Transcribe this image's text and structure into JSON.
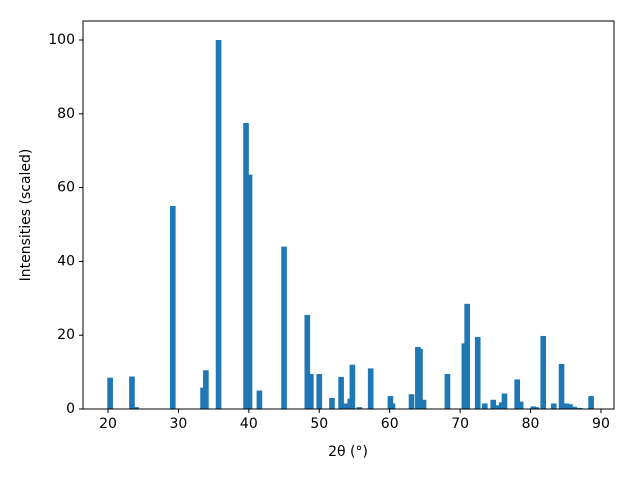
{
  "chart_data": {
    "type": "bar",
    "xlabel": "2θ (°)",
    "ylabel": "Intensities (scaled)",
    "color": "#1f77b4",
    "x": [
      20.3,
      23.4,
      24.0,
      29.2,
      33.5,
      33.9,
      35.7,
      39.6,
      40.1,
      41.5,
      45.0,
      48.3,
      48.8,
      50.0,
      51.8,
      53.1,
      53.8,
      54.4,
      54.7,
      55.7,
      57.3,
      60.1,
      60.4,
      63.1,
      64.0,
      64.3,
      64.8,
      68.2,
      70.6,
      71.0,
      72.5,
      73.5,
      74.7,
      75.3,
      75.9,
      76.3,
      78.1,
      78.6,
      80.4,
      80.8,
      81.8,
      83.3,
      84.4,
      85.1,
      85.6,
      86.2,
      87.0,
      88.6
    ],
    "values": [
      8.5,
      8.8,
      0.5,
      55,
      5.8,
      10.5,
      100,
      77.5,
      63.5,
      5,
      44,
      25.5,
      9.5,
      9.5,
      3,
      8.7,
      1.5,
      2.8,
      12,
      0.5,
      11,
      3.5,
      1.5,
      4,
      16.8,
      16.3,
      2.5,
      9.5,
      17.8,
      28.5,
      19.5,
      1.5,
      2.5,
      1,
      1.8,
      4.2,
      8,
      2,
      0.7,
      0.5,
      19.8,
      1.5,
      12.2,
      1.5,
      1.3,
      0.6,
      0.3,
      3.5
    ],
    "xlim": [
      16.45,
      91.85
    ],
    "ylim": [
      0,
      105.15
    ],
    "xticks": [
      20,
      30,
      40,
      50,
      60,
      70,
      80,
      90
    ],
    "yticks": [
      0,
      20,
      40,
      60,
      80,
      100
    ]
  }
}
